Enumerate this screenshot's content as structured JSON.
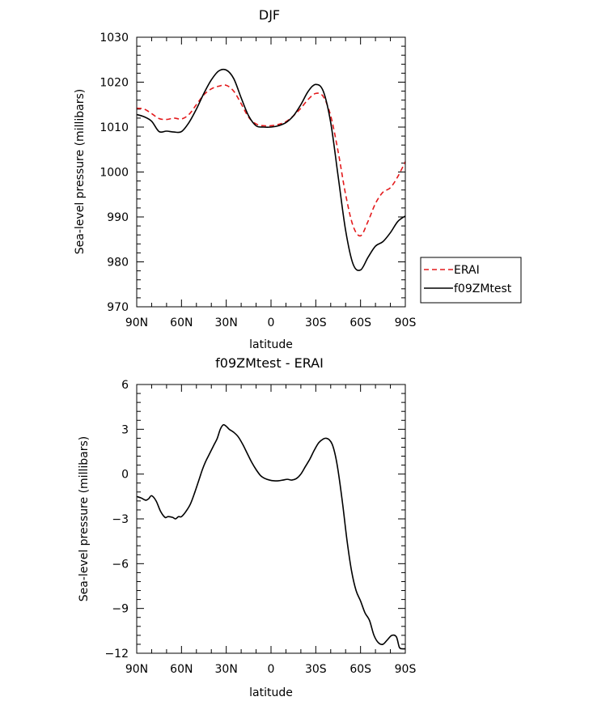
{
  "chart_data": [
    {
      "type": "line",
      "title": "DJF",
      "xlabel": "latitude",
      "ylabel": "Sea-level pressure (millibars)",
      "xlim": [
        90,
        -90
      ],
      "ylim": [
        970,
        1030
      ],
      "x_ticks": [
        90,
        60,
        30,
        0,
        -30,
        -60,
        -90
      ],
      "x_tick_labels": [
        "90N",
        "60N",
        "30N",
        "0",
        "30S",
        "60S",
        "90S"
      ],
      "y_ticks": [
        970,
        980,
        990,
        1000,
        1010,
        1020,
        1030
      ],
      "y_tick_labels": [
        "970",
        "980",
        "990",
        "1000",
        "1010",
        "1020",
        "1030"
      ],
      "legend_position": "right",
      "series": [
        {
          "name": "ERAI",
          "color": "#e31a1c",
          "dash": "dashed",
          "x": [
            90,
            85,
            80,
            75,
            70,
            65,
            60,
            55,
            50,
            45,
            40,
            35,
            30,
            25,
            20,
            15,
            10,
            5,
            0,
            -5,
            -10,
            -15,
            -20,
            -25,
            -30,
            -35,
            -40,
            -45,
            -50,
            -55,
            -60,
            -65,
            -70,
            -75,
            -80,
            -85,
            -90
          ],
          "y": [
            1014.2,
            1014.0,
            1013.0,
            1011.9,
            1011.7,
            1012.0,
            1011.8,
            1012.8,
            1015.0,
            1017.2,
            1018.5,
            1019.1,
            1019.3,
            1018.0,
            1015.2,
            1012.2,
            1010.7,
            1010.3,
            1010.3,
            1010.6,
            1011.2,
            1012.5,
            1014.2,
            1016.2,
            1017.5,
            1016.8,
            1012.5,
            1004.5,
            995.0,
            988.0,
            985.8,
            989.0,
            993.0,
            995.5,
            996.5,
            999.0,
            1002.3
          ]
        },
        {
          "name": "f09ZMtest",
          "color": "#000000",
          "dash": "solid",
          "x": [
            90,
            85,
            80,
            75,
            70,
            65,
            60,
            55,
            50,
            45,
            40,
            35,
            30,
            25,
            20,
            15,
            10,
            5,
            0,
            -5,
            -10,
            -15,
            -20,
            -25,
            -30,
            -35,
            -40,
            -45,
            -50,
            -55,
            -60,
            -65,
            -70,
            -75,
            -80,
            -85,
            -90
          ],
          "y": [
            1012.8,
            1012.3,
            1011.3,
            1009.0,
            1009.1,
            1008.9,
            1009.0,
            1011.0,
            1014.0,
            1017.5,
            1020.5,
            1022.5,
            1022.7,
            1020.8,
            1016.5,
            1012.5,
            1010.3,
            1010.0,
            1010.0,
            1010.3,
            1011.0,
            1012.5,
            1015.0,
            1018.0,
            1019.5,
            1018.0,
            1011.0,
            999.0,
            987.0,
            979.5,
            978.2,
            981.0,
            983.5,
            984.5,
            986.5,
            989.0,
            990.2
          ]
        }
      ]
    },
    {
      "type": "line",
      "title": "f09ZMtest - ERAI",
      "xlabel": "latitude",
      "ylabel": "Sea-level pressure (millibars)",
      "xlim": [
        90,
        -90
      ],
      "ylim": [
        -12,
        6
      ],
      "x_ticks": [
        90,
        60,
        30,
        0,
        -30,
        -60,
        -90
      ],
      "x_tick_labels": [
        "90N",
        "60N",
        "30N",
        "0",
        "30S",
        "60S",
        "90S"
      ],
      "y_ticks": [
        -12,
        -9,
        -6,
        -3,
        0,
        3,
        6
      ],
      "y_tick_labels": [
        "−12",
        "−9",
        "−6",
        "−3",
        "0",
        "3",
        "6"
      ],
      "series": [
        {
          "color": "#000000",
          "dash": "solid",
          "x": [
            90,
            87,
            84,
            82,
            80,
            77,
            74,
            71,
            69,
            66,
            64,
            62,
            60,
            57,
            54,
            51,
            48,
            46,
            44,
            42,
            40,
            38,
            36,
            34,
            32,
            30,
            28,
            25,
            22,
            19,
            16,
            13,
            10,
            7,
            4,
            1,
            -2,
            -5,
            -8,
            -11,
            -14,
            -17,
            -20,
            -23,
            -26,
            -29,
            -32,
            -35,
            -37,
            -39,
            -41,
            -43,
            -45,
            -48,
            -51,
            -54,
            -57,
            -60,
            -63,
            -66,
            -69,
            -72,
            -75,
            -78,
            -81,
            -84,
            -86,
            -88,
            -90
          ],
          "y": [
            -1.5,
            -1.6,
            -1.75,
            -1.65,
            -1.45,
            -1.8,
            -2.5,
            -2.9,
            -2.85,
            -2.9,
            -3.0,
            -2.85,
            -2.85,
            -2.5,
            -2.0,
            -1.2,
            -0.3,
            0.3,
            0.8,
            1.2,
            1.6,
            2.0,
            2.4,
            3.0,
            3.3,
            3.2,
            3.0,
            2.8,
            2.5,
            2.0,
            1.4,
            0.8,
            0.3,
            -0.1,
            -0.3,
            -0.4,
            -0.45,
            -0.45,
            -0.4,
            -0.35,
            -0.4,
            -0.3,
            0.0,
            0.5,
            1.0,
            1.6,
            2.1,
            2.35,
            2.4,
            2.3,
            2.0,
            1.3,
            0.2,
            -2.0,
            -4.5,
            -6.5,
            -7.8,
            -8.5,
            -9.3,
            -9.8,
            -10.8,
            -11.3,
            -11.4,
            -11.1,
            -10.8,
            -10.9,
            -11.6,
            -11.7,
            -11.7
          ]
        }
      ]
    }
  ]
}
